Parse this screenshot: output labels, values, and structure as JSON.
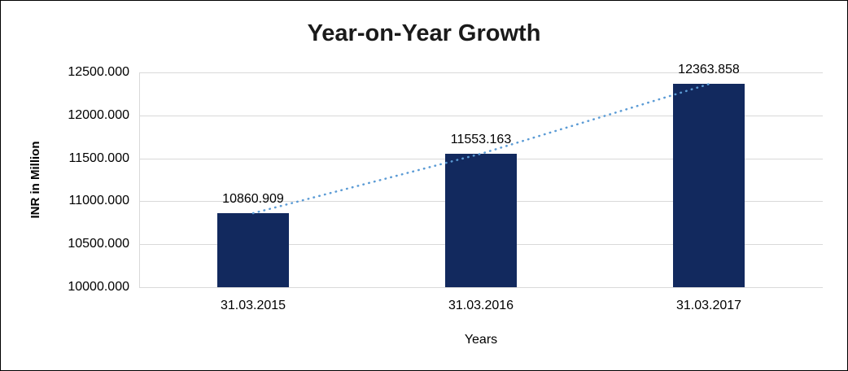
{
  "chart_data": {
    "type": "bar",
    "title": "Year-on-Year Growth",
    "categories": [
      "31.03.2015",
      "31.03.2016",
      "31.03.2017"
    ],
    "values": [
      10860.909,
      11553.163,
      12363.858
    ],
    "data_labels": [
      "10860.909",
      "11553.163",
      "12363.858"
    ],
    "xlabel": "Years",
    "ylabel": "INR in Million",
    "ylim": [
      10000,
      12500
    ],
    "y_tick_step": 500,
    "y_ticks": [
      "10000.000",
      "10500.000",
      "11000.000",
      "11500.000",
      "12000.000",
      "12500.000"
    ],
    "grid": true,
    "legend": "none",
    "bar_color": "#12295E",
    "trendline": {
      "style": "dotted",
      "color": "#5B9BD5"
    },
    "grid_color": "#d9d9d9",
    "text_color": "#000000",
    "title_color": "#1a1a1a",
    "background_color": "#ffffff"
  }
}
